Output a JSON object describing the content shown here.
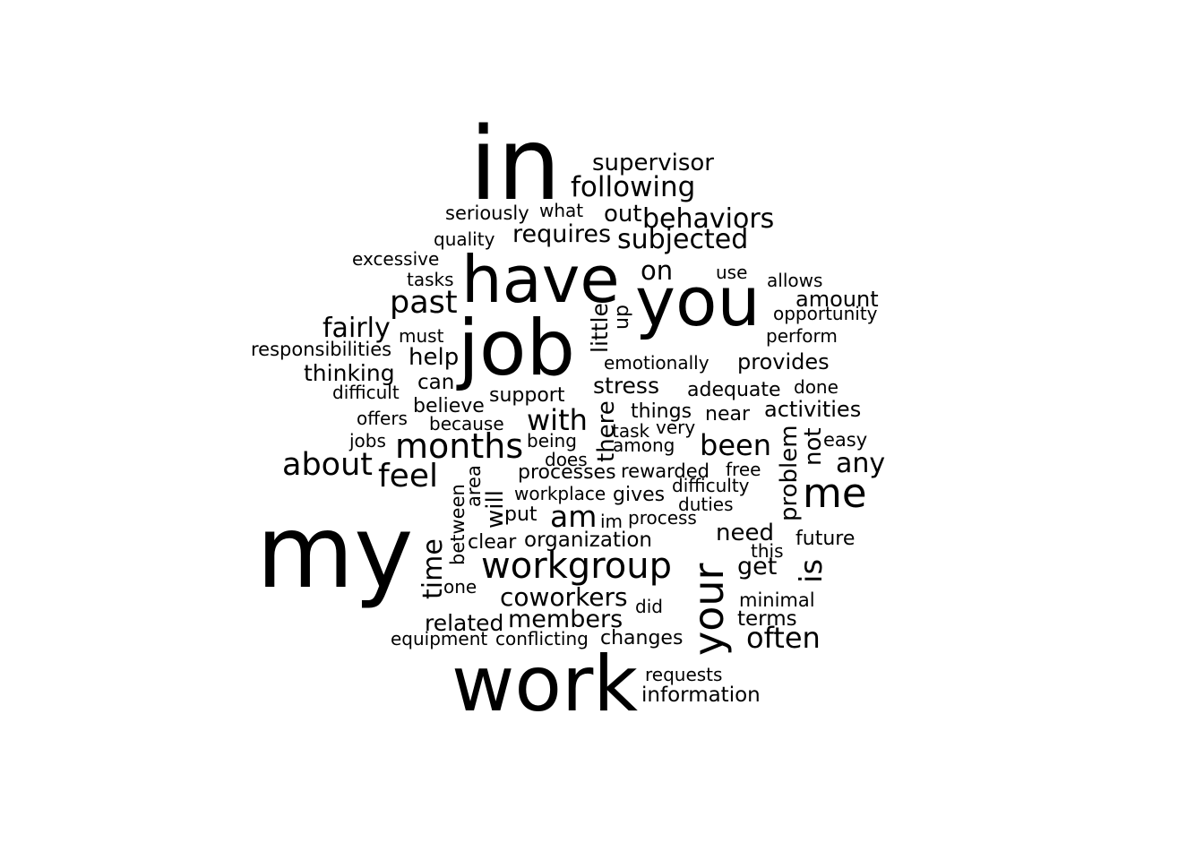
{
  "cloud": {
    "words": [
      "in",
      "supervisor",
      "following",
      "seriously",
      "what",
      "out",
      "behaviors",
      "quality",
      "requires",
      "subjected",
      "excessive",
      "have",
      "on",
      "use",
      "allows",
      "tasks",
      "you",
      "amount",
      "past",
      "opportunity",
      "fairly",
      "job",
      "little",
      "up",
      "must",
      "perform",
      "responsibilities",
      "help",
      "emotionally",
      "provides",
      "thinking",
      "can",
      "difficult",
      "support",
      "stress",
      "adequate",
      "done",
      "believe",
      "offers",
      "because",
      "with",
      "things",
      "near",
      "activities",
      "there",
      "task",
      "very",
      "jobs",
      "being",
      "months",
      "among",
      "been",
      "not",
      "easy",
      "about",
      "problem",
      "does",
      "any",
      "feel",
      "processes",
      "rewarded",
      "free",
      "area",
      "between",
      "difficulty",
      "workplace",
      "gives",
      "me",
      "will",
      "duties",
      "put",
      "am",
      "process",
      "im",
      "need",
      "my",
      "time",
      "clear",
      "organization",
      "future",
      "this",
      "your",
      "workgroup",
      "get",
      "is",
      "one",
      "coworkers",
      "minimal",
      "did",
      "related",
      "members",
      "terms",
      "equipment",
      "conflicting",
      "changes",
      "often",
      "work",
      "requests",
      "information"
    ],
    "text_color": "#000000",
    "background_color": "#ffffff"
  }
}
